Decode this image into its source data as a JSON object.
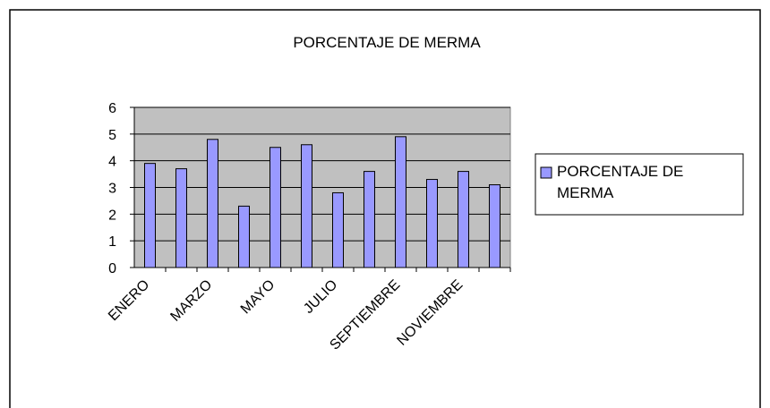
{
  "chart_data": {
    "type": "bar",
    "title": "PORCENTAJE DE MERMA",
    "categories": [
      "ENERO",
      null,
      "MARZO",
      null,
      "MAYO",
      null,
      "JULIO",
      null,
      "SEPTIEMBRE",
      null,
      "NOVIEMBRE",
      null
    ],
    "series": [
      {
        "name": "PORCENTAJE DE MERMA",
        "color": "#9999ff",
        "values": [
          3.9,
          3.7,
          4.8,
          2.3,
          4.5,
          4.6,
          2.8,
          3.6,
          4.9,
          3.3,
          3.6,
          3.1
        ]
      }
    ],
    "ylim": [
      0,
      6
    ],
    "yticks": [
      0,
      1,
      2,
      3,
      4,
      5,
      6
    ],
    "grid": true,
    "legend": "right"
  }
}
